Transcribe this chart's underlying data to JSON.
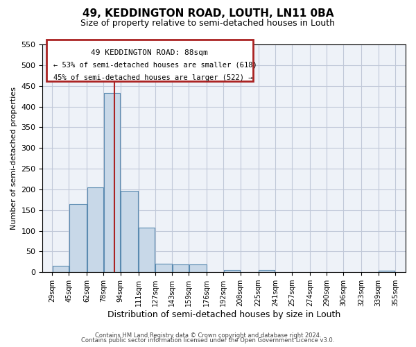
{
  "title": "49, KEDDINGTON ROAD, LOUTH, LN11 0BA",
  "subtitle": "Size of property relative to semi-detached houses in Louth",
  "xlabel": "Distribution of semi-detached houses by size in Louth",
  "ylabel": "Number of semi-detached properties",
  "bar_left_edges": [
    29,
    45,
    62,
    78,
    94,
    111,
    127,
    143,
    159,
    176,
    192,
    208,
    225,
    241,
    257,
    274,
    290,
    306,
    323,
    339
  ],
  "bar_widths": [
    16,
    17,
    16,
    16,
    17,
    16,
    16,
    16,
    17,
    16,
    16,
    17,
    16,
    16,
    17,
    16,
    16,
    17,
    16,
    16
  ],
  "bar_heights": [
    15,
    165,
    204,
    432,
    197,
    107,
    21,
    18,
    19,
    0,
    6,
    0,
    5,
    0,
    0,
    0,
    0,
    0,
    0,
    4
  ],
  "tick_labels": [
    "29sqm",
    "45sqm",
    "62sqm",
    "78sqm",
    "94sqm",
    "111sqm",
    "127sqm",
    "143sqm",
    "159sqm",
    "176sqm",
    "192sqm",
    "208sqm",
    "225sqm",
    "241sqm",
    "257sqm",
    "274sqm",
    "290sqm",
    "306sqm",
    "323sqm",
    "339sqm",
    "355sqm"
  ],
  "tick_positions": [
    29,
    45,
    62,
    78,
    94,
    111,
    127,
    143,
    159,
    176,
    192,
    208,
    225,
    241,
    257,
    274,
    290,
    306,
    323,
    339,
    355
  ],
  "ylim": [
    0,
    550
  ],
  "xlim": [
    20,
    365
  ],
  "bar_color": "#c8d8e8",
  "bar_edge_color": "#5a8ab0",
  "grid_color": "#c0c8d8",
  "bg_color": "#eef2f8",
  "vline_x": 88,
  "vline_color": "#aa2222",
  "annotation_title": "49 KEDDINGTON ROAD: 88sqm",
  "annotation_line1": "← 53% of semi-detached houses are smaller (618)",
  "annotation_line2": "45% of semi-detached houses are larger (522) →",
  "footer_line1": "Contains HM Land Registry data © Crown copyright and database right 2024.",
  "footer_line2": "Contains public sector information licensed under the Open Government Licence v3.0.",
  "yticks": [
    0,
    50,
    100,
    150,
    200,
    250,
    300,
    350,
    400,
    450,
    500,
    550
  ]
}
